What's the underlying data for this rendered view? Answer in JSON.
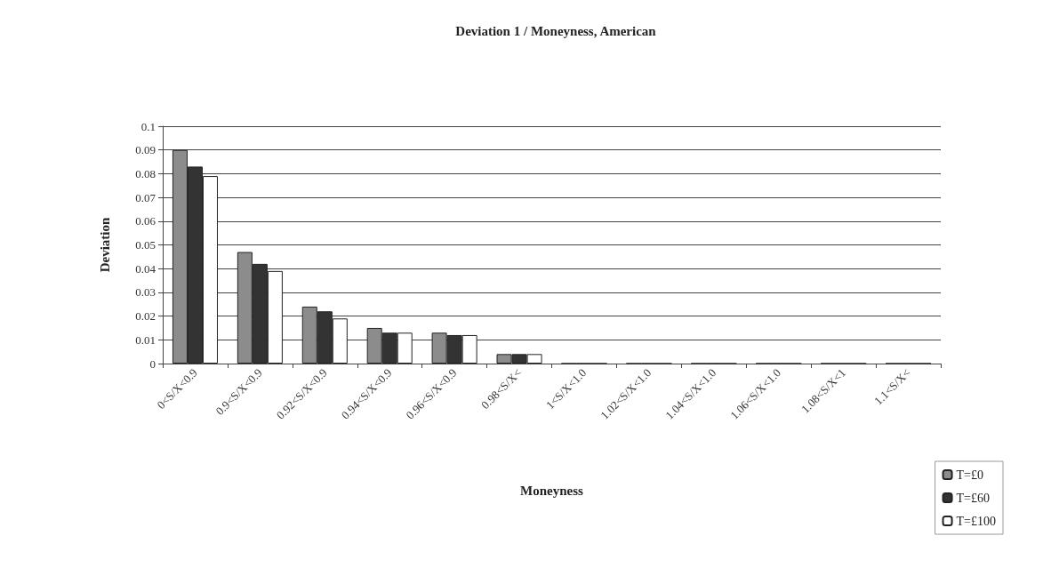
{
  "chart_data": {
    "type": "bar",
    "title": "Deviation 1 / Moneyness, American",
    "xlabel": "Moneyness",
    "ylabel": "Deviation",
    "categories": [
      "0<S/X<0.9",
      "0.9<S/X<0.9",
      "0.92<S/X<0.9",
      "0.94<S/X<0.9",
      "0.96<S/X<0.9",
      "0.98<S/X<",
      "1<S/X<1.0",
      "1.02<S/X<1.0",
      "1.04<S/X<1.0",
      "1.06<S/X<1.0",
      "1.08<S/X<1",
      "1.1<S/X<"
    ],
    "series": [
      {
        "name": "T=£0",
        "color": "#8c8c8c",
        "values": [
          0.09,
          0.047,
          0.024,
          0.015,
          0.013,
          0.004,
          0,
          0,
          0,
          0,
          0,
          0
        ]
      },
      {
        "name": "T=£60",
        "color": "#333333",
        "values": [
          0.083,
          0.042,
          0.022,
          0.013,
          0.012,
          0.004,
          0,
          0,
          0,
          0,
          0,
          0
        ]
      },
      {
        "name": "T=£100",
        "color": "#ffffff",
        "values": [
          0.079,
          0.039,
          0.019,
          0.013,
          0.012,
          0.004,
          0,
          0,
          0,
          0,
          0,
          0
        ]
      }
    ],
    "ylim": [
      0,
      0.1
    ],
    "yticks": [
      0,
      0.01,
      0.02,
      0.03,
      0.04,
      0.05,
      0.06,
      0.07,
      0.08,
      0.09,
      0.1
    ],
    "grid": "y",
    "legend": "bottom right"
  }
}
